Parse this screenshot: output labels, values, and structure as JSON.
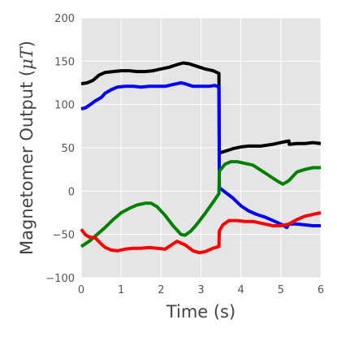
{
  "chart_data": {
    "type": "line",
    "title": "",
    "xlabel": "Time (s)",
    "ylabel": {
      "prefix": "Magnetomer Output (",
      "var": "μT",
      "suffix": ")"
    },
    "xlim": [
      0,
      6
    ],
    "ylim": [
      -100,
      200
    ],
    "xticks": [
      0,
      1,
      2,
      3,
      4,
      5,
      6
    ],
    "xtick_labels": [
      "0",
      "1",
      "2",
      "3",
      "4",
      "5",
      "6"
    ],
    "yticks": [
      -100,
      -50,
      0,
      50,
      100,
      150,
      200
    ],
    "ytick_labels": [
      "−100",
      "−50",
      "0",
      "50",
      "100",
      "150",
      "200"
    ],
    "grid": true,
    "background": "#e5e5e5",
    "grid_color": "#ffffff",
    "series": [
      {
        "color": "#000000",
        "points": [
          [
            0,
            124
          ],
          [
            0.15,
            125
          ],
          [
            0.3,
            128
          ],
          [
            0.45,
            134
          ],
          [
            0.6,
            137
          ],
          [
            0.8,
            138
          ],
          [
            1.0,
            139
          ],
          [
            1.2,
            139
          ],
          [
            1.4,
            138
          ],
          [
            1.6,
            138
          ],
          [
            1.8,
            139
          ],
          [
            2.0,
            141
          ],
          [
            2.2,
            143
          ],
          [
            2.4,
            146
          ],
          [
            2.55,
            148
          ],
          [
            2.7,
            147
          ],
          [
            2.9,
            144
          ],
          [
            3.1,
            141
          ],
          [
            3.3,
            139
          ],
          [
            3.45,
            136
          ],
          [
            3.46,
            44
          ],
          [
            3.6,
            46
          ],
          [
            3.8,
            49
          ],
          [
            4.0,
            51
          ],
          [
            4.2,
            52
          ],
          [
            4.5,
            52
          ],
          [
            4.8,
            54
          ],
          [
            5.0,
            56
          ],
          [
            5.2,
            58
          ],
          [
            5.21,
            54
          ],
          [
            5.4,
            55
          ],
          [
            5.6,
            55
          ],
          [
            5.8,
            56
          ],
          [
            6.0,
            55
          ]
        ]
      },
      {
        "color": "#0000ff",
        "points": [
          [
            0,
            95
          ],
          [
            0.1,
            96
          ],
          [
            0.2,
            99
          ],
          [
            0.35,
            104
          ],
          [
            0.5,
            108
          ],
          [
            0.6,
            113
          ],
          [
            0.75,
            117
          ],
          [
            0.9,
            120
          ],
          [
            1.1,
            121
          ],
          [
            1.3,
            121
          ],
          [
            1.5,
            120
          ],
          [
            1.7,
            121
          ],
          [
            1.9,
            121
          ],
          [
            2.1,
            121
          ],
          [
            2.3,
            123
          ],
          [
            2.5,
            125
          ],
          [
            2.6,
            124
          ],
          [
            2.8,
            121
          ],
          [
            3.0,
            121
          ],
          [
            3.2,
            121
          ],
          [
            3.35,
            122
          ],
          [
            3.45,
            120
          ],
          [
            3.46,
            4
          ],
          [
            3.6,
            -1
          ],
          [
            3.8,
            -8
          ],
          [
            4.0,
            -17
          ],
          [
            4.2,
            -23
          ],
          [
            4.4,
            -27
          ],
          [
            4.6,
            -30
          ],
          [
            4.8,
            -34
          ],
          [
            5.0,
            -38
          ],
          [
            5.15,
            -42
          ],
          [
            5.2,
            -38
          ],
          [
            5.4,
            -38
          ],
          [
            5.6,
            -39
          ],
          [
            5.8,
            -40
          ],
          [
            6.0,
            -40
          ]
        ]
      },
      {
        "color": "#008000",
        "points": [
          [
            0,
            -64
          ],
          [
            0.2,
            -58
          ],
          [
            0.4,
            -50
          ],
          [
            0.6,
            -42
          ],
          [
            0.8,
            -33
          ],
          [
            1.0,
            -25
          ],
          [
            1.2,
            -20
          ],
          [
            1.4,
            -16
          ],
          [
            1.6,
            -14
          ],
          [
            1.75,
            -14
          ],
          [
            1.9,
            -18
          ],
          [
            2.1,
            -28
          ],
          [
            2.3,
            -40
          ],
          [
            2.5,
            -50
          ],
          [
            2.6,
            -51
          ],
          [
            2.75,
            -46
          ],
          [
            2.9,
            -38
          ],
          [
            3.1,
            -26
          ],
          [
            3.3,
            -13
          ],
          [
            3.45,
            -3
          ],
          [
            3.46,
            23
          ],
          [
            3.6,
            31
          ],
          [
            3.75,
            34
          ],
          [
            3.9,
            34
          ],
          [
            4.1,
            32
          ],
          [
            4.3,
            30
          ],
          [
            4.5,
            24
          ],
          [
            4.7,
            18
          ],
          [
            4.9,
            12
          ],
          [
            5.05,
            8
          ],
          [
            5.2,
            12
          ],
          [
            5.4,
            22
          ],
          [
            5.6,
            25
          ],
          [
            5.8,
            27
          ],
          [
            6.0,
            27
          ]
        ]
      },
      {
        "color": "#ff0000",
        "points": [
          [
            0,
            -44
          ],
          [
            0.1,
            -50
          ],
          [
            0.2,
            -53
          ],
          [
            0.35,
            -54
          ],
          [
            0.5,
            -61
          ],
          [
            0.6,
            -65
          ],
          [
            0.75,
            -68
          ],
          [
            0.9,
            -69
          ],
          [
            1.1,
            -67
          ],
          [
            1.3,
            -66
          ],
          [
            1.5,
            -66
          ],
          [
            1.7,
            -65
          ],
          [
            1.9,
            -66
          ],
          [
            2.1,
            -67
          ],
          [
            2.2,
            -64
          ],
          [
            2.4,
            -58
          ],
          [
            2.6,
            -62
          ],
          [
            2.8,
            -69
          ],
          [
            2.95,
            -71
          ],
          [
            3.1,
            -70
          ],
          [
            3.3,
            -66
          ],
          [
            3.45,
            -64
          ],
          [
            3.46,
            -46
          ],
          [
            3.55,
            -39
          ],
          [
            3.7,
            -34
          ],
          [
            3.9,
            -34
          ],
          [
            4.1,
            -35
          ],
          [
            4.3,
            -35
          ],
          [
            4.5,
            -37
          ],
          [
            4.8,
            -40
          ],
          [
            5.0,
            -40
          ],
          [
            5.2,
            -38
          ],
          [
            5.4,
            -33
          ],
          [
            5.6,
            -29
          ],
          [
            5.8,
            -27
          ],
          [
            6.0,
            -25
          ]
        ]
      }
    ]
  }
}
